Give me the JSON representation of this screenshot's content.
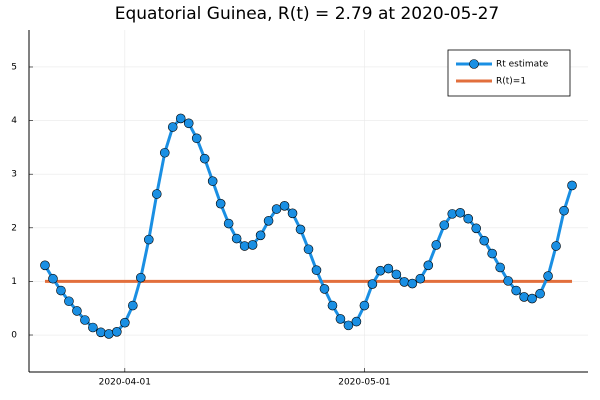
{
  "chart_data": {
    "type": "line",
    "title": "Equatorial Guinea, R(t) = 2.79 at 2020-05-27",
    "x": [
      "2020-03-22",
      "2020-03-23",
      "2020-03-24",
      "2020-03-25",
      "2020-03-26",
      "2020-03-27",
      "2020-03-28",
      "2020-03-29",
      "2020-03-30",
      "2020-03-31",
      "2020-04-01",
      "2020-04-02",
      "2020-04-03",
      "2020-04-04",
      "2020-04-05",
      "2020-04-06",
      "2020-04-07",
      "2020-04-08",
      "2020-04-09",
      "2020-04-10",
      "2020-04-11",
      "2020-04-12",
      "2020-04-13",
      "2020-04-14",
      "2020-04-15",
      "2020-04-16",
      "2020-04-17",
      "2020-04-18",
      "2020-04-19",
      "2020-04-20",
      "2020-04-21",
      "2020-04-22",
      "2020-04-23",
      "2020-04-24",
      "2020-04-25",
      "2020-04-26",
      "2020-04-27",
      "2020-04-28",
      "2020-04-29",
      "2020-04-30",
      "2020-05-01",
      "2020-05-02",
      "2020-05-03",
      "2020-05-04",
      "2020-05-05",
      "2020-05-06",
      "2020-05-07",
      "2020-05-08",
      "2020-05-09",
      "2020-05-10",
      "2020-05-11",
      "2020-05-12",
      "2020-05-13",
      "2020-05-14",
      "2020-05-15",
      "2020-05-16",
      "2020-05-17",
      "2020-05-18",
      "2020-05-19",
      "2020-05-20",
      "2020-05-21",
      "2020-05-22",
      "2020-05-23",
      "2020-05-24",
      "2020-05-25",
      "2020-05-26",
      "2020-05-27"
    ],
    "series": [
      {
        "name": "Rt estimate",
        "color": "#1a8fe3",
        "markers": true,
        "values": [
          1.3,
          1.05,
          0.83,
          0.63,
          0.45,
          0.28,
          0.14,
          0.05,
          0.02,
          0.06,
          0.23,
          0.55,
          1.07,
          1.78,
          2.63,
          3.4,
          3.88,
          4.04,
          3.95,
          3.67,
          3.29,
          2.87,
          2.45,
          2.08,
          1.8,
          1.66,
          1.68,
          1.86,
          2.13,
          2.35,
          2.41,
          2.27,
          1.97,
          1.6,
          1.21,
          0.86,
          0.55,
          0.3,
          0.18,
          0.25,
          0.55,
          0.95,
          1.2,
          1.24,
          1.13,
          0.99,
          0.96,
          1.05,
          1.3,
          1.68,
          2.05,
          2.26,
          2.28,
          2.17,
          1.99,
          1.76,
          1.52,
          1.26,
          1.01,
          0.83,
          0.71,
          0.68,
          0.77,
          1.1,
          1.66,
          2.32,
          2.79
        ]
      },
      {
        "name": "R(t)=1",
        "color": "#e26f3c",
        "markers": false,
        "values": [
          1,
          1,
          1,
          1,
          1,
          1,
          1,
          1,
          1,
          1,
          1,
          1,
          1,
          1,
          1,
          1,
          1,
          1,
          1,
          1,
          1,
          1,
          1,
          1,
          1,
          1,
          1,
          1,
          1,
          1,
          1,
          1,
          1,
          1,
          1,
          1,
          1,
          1,
          1,
          1,
          1,
          1,
          1,
          1,
          1,
          1,
          1,
          1,
          1,
          1,
          1,
          1,
          1,
          1,
          1,
          1,
          1,
          1,
          1,
          1,
          1,
          1,
          1,
          1,
          1,
          1,
          1
        ]
      }
    ],
    "xlim": [
      "2020-03-20",
      "2020-05-29"
    ],
    "xticks": [
      "2020-04-01",
      "2020-05-01"
    ],
    "ylim": [
      -0.69,
      5.69
    ],
    "yticks": [
      0,
      1,
      2,
      3,
      4,
      5
    ],
    "grid": true,
    "legend": "top-right"
  }
}
